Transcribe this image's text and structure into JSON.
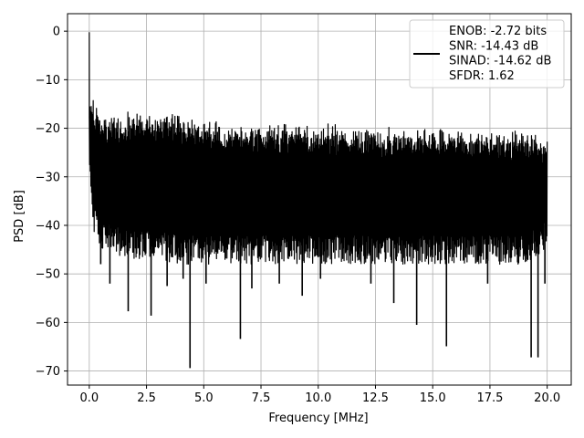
{
  "chart_data": {
    "type": "line",
    "title": "",
    "xlabel": "Frequency [MHz]",
    "ylabel": "PSD [dB]",
    "xlim": [
      -0.95,
      21.05
    ],
    "ylim": [
      -72.9,
      3.6
    ],
    "xticks": [
      0.0,
      2.5,
      5.0,
      7.5,
      10.0,
      12.5,
      15.0,
      17.5,
      20.0
    ],
    "xtick_labels": [
      "0.0",
      "2.5",
      "5.0",
      "7.5",
      "10.0",
      "12.5",
      "15.0",
      "17.5",
      "20.0"
    ],
    "yticks": [
      0,
      -10,
      -20,
      -30,
      -40,
      -50,
      -60,
      -70
    ],
    "ytick_labels": [
      "0",
      "−10",
      "−20",
      "−30",
      "−40",
      "−50",
      "−60",
      "−70"
    ],
    "grid": true,
    "legend_position": "top-right",
    "legend_lines": [
      "ENOB: -2.72 bits",
      "SNR: -14.43 dB",
      "SINAD: -14.62 dB",
      "SFDR: 1.62"
    ],
    "series": [
      {
        "color": "#000000",
        "peak": [
          0.0,
          -0.3
        ],
        "envelope_x": [
          0.0,
          0.2,
          0.5,
          1.0,
          2.0,
          3.0,
          4.0,
          5.0,
          6.0,
          7.0,
          8.0,
          9.0,
          10.0,
          11.0,
          12.0,
          13.0,
          14.0,
          15.0,
          16.0,
          17.0,
          18.0,
          19.0,
          20.0
        ],
        "envelope_upper": [
          -14,
          -16,
          -18,
          -18.5,
          -18.5,
          -18.5,
          -19,
          -19.5,
          -20,
          -20.5,
          -20.5,
          -20.5,
          -21,
          -21,
          -21,
          -21.5,
          -21.5,
          -21.5,
          -21.5,
          -22,
          -22,
          -22,
          -23
        ],
        "envelope_lower": [
          -30,
          -42,
          -45,
          -46,
          -47,
          -47,
          -48,
          -48,
          -48,
          -48,
          -48,
          -48,
          -48,
          -48,
          -48,
          -48,
          -48,
          -48,
          -48,
          -48,
          -48,
          -48,
          -45
        ],
        "dips": [
          [
            0.5,
            -48
          ],
          [
            0.9,
            -52
          ],
          [
            1.7,
            -57.7
          ],
          [
            2.7,
            -58.6
          ],
          [
            3.4,
            -52.5
          ],
          [
            4.1,
            -51
          ],
          [
            4.4,
            -69.4
          ],
          [
            5.1,
            -52
          ],
          [
            6.6,
            -63.4
          ],
          [
            7.1,
            -53
          ],
          [
            8.3,
            -52
          ],
          [
            9.3,
            -54.5
          ],
          [
            10.1,
            -51
          ],
          [
            12.3,
            -52
          ],
          [
            13.3,
            -56
          ],
          [
            14.3,
            -60.5
          ],
          [
            15.6,
            -64.9
          ],
          [
            17.4,
            -52
          ],
          [
            19.3,
            -67.2
          ],
          [
            19.6,
            -67.2
          ],
          [
            19.9,
            -52
          ]
        ]
      }
    ]
  }
}
